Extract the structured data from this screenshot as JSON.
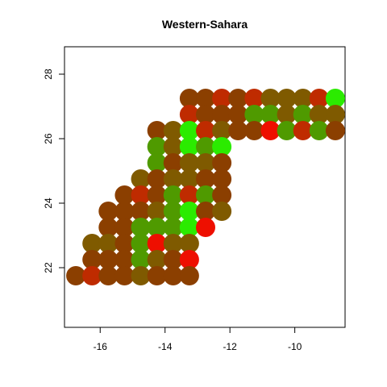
{
  "chart_data": {
    "type": "scatter",
    "title": "Western-Sahara",
    "x": [
      -13.25,
      -12.75,
      -12.25,
      -11.75,
      -11.25,
      -10.75,
      -10.25,
      -9.75,
      -9.25,
      -8.75,
      -13.25,
      -12.75,
      -12.25,
      -11.75,
      -11.25,
      -10.75,
      -10.25,
      -9.75,
      -9.25,
      -8.75,
      -14.25,
      -13.75,
      -13.25,
      -12.75,
      -12.25,
      -11.75,
      -11.25,
      -10.75,
      -10.25,
      -9.75,
      -9.25,
      -8.75,
      -14.25,
      -13.75,
      -13.25,
      -12.75,
      -12.25,
      -14.25,
      -13.75,
      -13.25,
      -12.75,
      -12.25,
      -14.75,
      -14.25,
      -13.75,
      -13.25,
      -12.75,
      -12.25,
      -15.25,
      -14.75,
      -14.25,
      -13.75,
      -13.25,
      -12.75,
      -12.25,
      -15.75,
      -15.25,
      -14.75,
      -14.25,
      -13.75,
      -13.25,
      -12.75,
      -12.25,
      -15.75,
      -15.25,
      -14.75,
      -14.25,
      -13.75,
      -13.25,
      -12.75,
      -16.25,
      -15.75,
      -15.25,
      -14.75,
      -14.25,
      -13.75,
      -13.25,
      -16.25,
      -15.75,
      -15.25,
      -14.75,
      -14.25,
      -13.75,
      -13.25,
      -16.75,
      -16.25,
      -15.75,
      -15.25,
      -14.75,
      -14.25,
      -13.75,
      -13.25
    ],
    "y": [
      27.25,
      27.25,
      27.25,
      27.25,
      27.25,
      27.25,
      27.25,
      27.25,
      27.25,
      27.25,
      26.75,
      26.75,
      26.75,
      26.75,
      26.75,
      26.75,
      26.75,
      26.75,
      26.75,
      26.75,
      26.25,
      26.25,
      26.25,
      26.25,
      26.25,
      26.25,
      26.25,
      26.25,
      26.25,
      26.25,
      26.25,
      26.25,
      25.75,
      25.75,
      25.75,
      25.75,
      25.75,
      25.25,
      25.25,
      25.25,
      25.25,
      25.25,
      24.75,
      24.75,
      24.75,
      24.75,
      24.75,
      24.75,
      24.25,
      24.25,
      24.25,
      24.25,
      24.25,
      24.25,
      24.25,
      23.75,
      23.75,
      23.75,
      23.75,
      23.75,
      23.75,
      23.75,
      23.75,
      23.25,
      23.25,
      23.25,
      23.25,
      23.25,
      23.25,
      23.25,
      22.75,
      22.75,
      22.75,
      22.75,
      22.75,
      22.75,
      22.75,
      22.25,
      22.25,
      22.25,
      22.25,
      22.25,
      22.25,
      22.25,
      21.75,
      21.75,
      21.75,
      21.75,
      21.75,
      21.75,
      21.75,
      21.75
    ],
    "colors": [
      "#8B3F00",
      "#8B3F00",
      "#BF2B00",
      "#8B3F00",
      "#BF2B00",
      "#7F5A00",
      "#7F5A00",
      "#7F5A00",
      "#BF2B00",
      "#2BEB00",
      "#BF2B00",
      "#8B3F00",
      "#8B3F00",
      "#8B3F00",
      "#4F9A00",
      "#4F9A00",
      "#7F5A00",
      "#4F9A00",
      "#7F5A00",
      "#7F5A00",
      "#8B3F00",
      "#7F5A00",
      "#2BEB00",
      "#BF2B00",
      "#7F5A00",
      "#8B3F00",
      "#8B3F00",
      "#EE0F00",
      "#4F9A00",
      "#BF2B00",
      "#4F9A00",
      "#8B3F00",
      "#4F9A00",
      "#7F5A00",
      "#2BEB00",
      "#4F9A00",
      "#2BEB00",
      "#4F9A00",
      "#8B3F00",
      "#7F5A00",
      "#7F5A00",
      "#8B3F00",
      "#7F5A00",
      "#8B3F00",
      "#7F5A00",
      "#7F5A00",
      "#8B3F00",
      "#8B3F00",
      "#8B3F00",
      "#BF2B00",
      "#8B3F00",
      "#4F9A00",
      "#BF2B00",
      "#4F9A00",
      "#8B3F00",
      "#8B3F00",
      "#8B3F00",
      "#8B3F00",
      "#7F5A00",
      "#4F9A00",
      "#2BEB00",
      "#8B3F00",
      "#7F5A00",
      "#8B3F00",
      "#8B3F00",
      "#4F9A00",
      "#4F9A00",
      "#4F9A00",
      "#2BEB00",
      "#EE0F00",
      "#7F5A00",
      "#7F5A00",
      "#8B3F00",
      "#4F9A00",
      "#EE0F00",
      "#7F5A00",
      "#7F5A00",
      "#8B3F00",
      "#8B3F00",
      "#8B3F00",
      "#4F9A00",
      "#7F5A00",
      "#8B3F00",
      "#EE0F00",
      "#8B3F00",
      "#BF2B00",
      "#8B3F00",
      "#8B3F00",
      "#7F5A00",
      "#8B3F00",
      "#8B3F00",
      "#8B3F00"
    ],
    "xlim": [
      -17.1,
      -8.45
    ],
    "ylim": [
      20.15,
      28.85
    ],
    "xticks": [
      -16,
      -14,
      -12,
      -10
    ],
    "yticks": [
      22,
      24,
      26,
      28
    ]
  }
}
